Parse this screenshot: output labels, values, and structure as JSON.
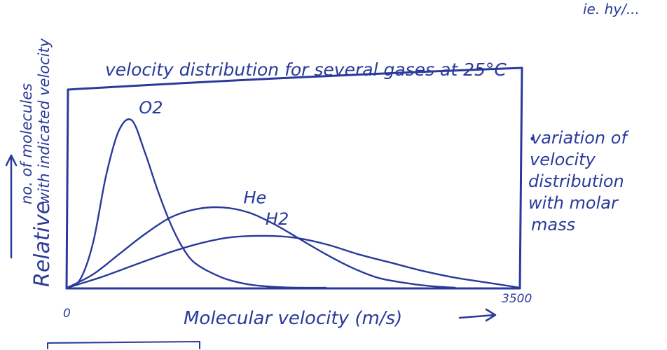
{
  "corner_text": "ie. hy/...",
  "ink_color": "#2a3a9a",
  "chart_data": {
    "type": "line",
    "title": "velocity distribution for several gases at 25°C",
    "xlabel": "Molecular velocity (m/s)",
    "ylabel": "Relative no. of molecules with indicated velocity",
    "ylabel_line1": "Relative",
    "ylabel_line2": "no. of molecules",
    "ylabel_line3": "with indicated velocity",
    "xlim": [
      0,
      3500
    ],
    "x_ticks": [
      {
        "value": 0,
        "label": "0"
      },
      {
        "value": 3500,
        "label": "3500"
      }
    ],
    "grid": false,
    "series": [
      {
        "name": "O2",
        "x": [
          0,
          100,
          200,
          300,
          400,
          500,
          600,
          700,
          800,
          900,
          1000,
          1200,
          1400,
          1600,
          1800,
          2000
        ],
        "y": [
          0,
          0.05,
          0.27,
          0.67,
          0.94,
          1.0,
          0.81,
          0.58,
          0.38,
          0.23,
          0.14,
          0.06,
          0.02,
          0.005,
          0.0,
          0.0
        ]
      },
      {
        "name": "He",
        "x": [
          0,
          200,
          400,
          600,
          800,
          1000,
          1200,
          1400,
          1600,
          1800,
          2000,
          2200,
          2400,
          2600,
          2800,
          3000
        ],
        "y": [
          0,
          0.08,
          0.2,
          0.32,
          0.42,
          0.47,
          0.48,
          0.45,
          0.38,
          0.29,
          0.2,
          0.12,
          0.06,
          0.03,
          0.01,
          0.0
        ]
      },
      {
        "name": "H2",
        "x": [
          0,
          250,
          500,
          750,
          1000,
          1250,
          1500,
          1750,
          2000,
          2250,
          2500,
          2750,
          3000,
          3250,
          3500
        ],
        "y": [
          0,
          0.06,
          0.13,
          0.2,
          0.26,
          0.3,
          0.31,
          0.3,
          0.26,
          0.2,
          0.15,
          0.1,
          0.06,
          0.03,
          0.0
        ]
      }
    ],
    "annotation": "• variation of velocity distribution with molar mass"
  }
}
